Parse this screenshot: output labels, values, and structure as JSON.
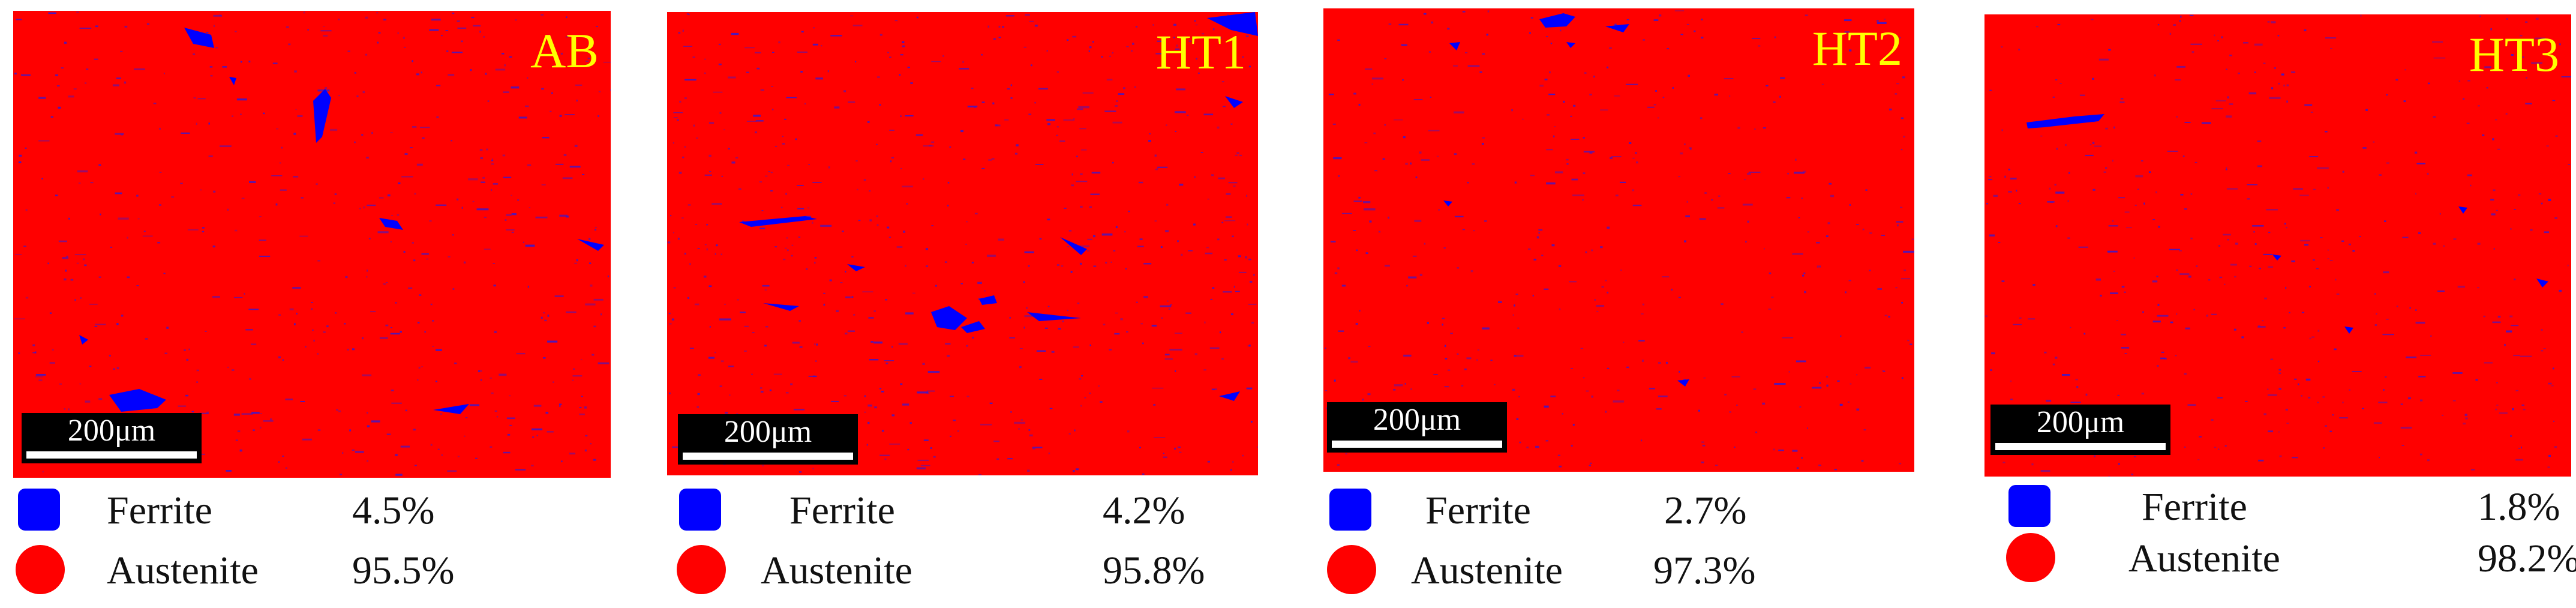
{
  "colors": {
    "austenite": "#ff0000",
    "ferrite": "#0000ff",
    "label": "#ffff00",
    "scale_bar": "#000000"
  },
  "panels": [
    {
      "label": "AB",
      "scale_bar": "200μm",
      "legend": [
        {
          "phase": "Ferrite",
          "fraction": "4.5%",
          "symbol": "square"
        },
        {
          "phase": "Austenite",
          "fraction": "95.5%",
          "symbol": "circle"
        }
      ]
    },
    {
      "label": "HT1",
      "scale_bar": "200μm",
      "legend": [
        {
          "phase": "Ferrite",
          "fraction": "4.2%",
          "symbol": "square"
        },
        {
          "phase": "Austenite",
          "fraction": "95.8%",
          "symbol": "circle"
        }
      ]
    },
    {
      "label": "HT2",
      "scale_bar": "200μm",
      "legend": [
        {
          "phase": "Ferrite",
          "fraction": "2.7%",
          "symbol": "square"
        },
        {
          "phase": "Austenite",
          "fraction": "97.3%",
          "symbol": "circle"
        }
      ]
    },
    {
      "label": "HT3",
      "scale_bar": "200μm",
      "legend": [
        {
          "phase": "Ferrite",
          "fraction": "1.8%",
          "symbol": "square"
        },
        {
          "phase": "Austenite",
          "fraction": "98.2%",
          "symbol": "circle"
        }
      ]
    }
  ]
}
